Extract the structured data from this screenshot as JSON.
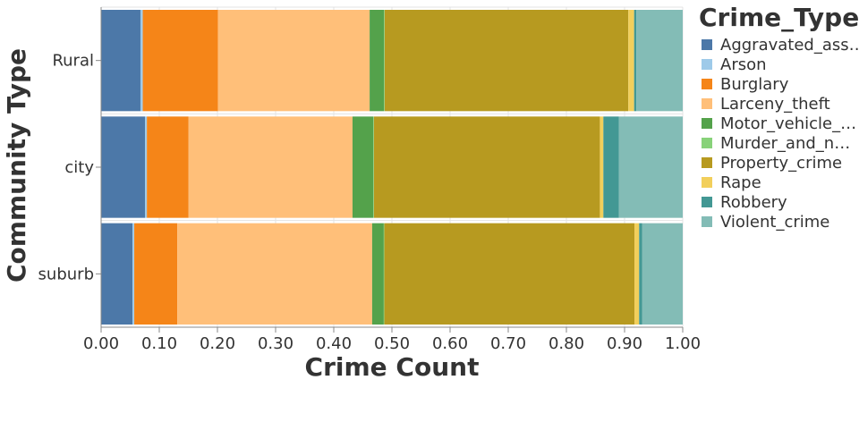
{
  "chart_data": {
    "type": "bar",
    "orientation": "horizontal",
    "stacked": "normalize",
    "xlabel": "Crime Count",
    "ylabel": "Community Type",
    "xlim": [
      0,
      1
    ],
    "x_ticks": [
      "0.00",
      "0.10",
      "0.20",
      "0.30",
      "0.40",
      "0.50",
      "0.60",
      "0.70",
      "0.80",
      "0.90",
      "1.00"
    ],
    "grid": true,
    "categories": [
      "Rural",
      "city",
      "suburb"
    ],
    "legend": {
      "title": "Crime_Type",
      "placement": "right",
      "entries": [
        "Aggravated_ass…",
        "Arson",
        "Burglary",
        "Larceny_theft",
        "Motor_vehicle_…",
        "Murder_and_n…",
        "Property_crime",
        "Rape",
        "Robbery",
        "Violent_crime"
      ]
    },
    "series": [
      {
        "name": "Aggravated_assault",
        "color": "#4c78a8",
        "values": [
          0.068,
          0.076,
          0.054
        ]
      },
      {
        "name": "Arson",
        "color": "#9ecae9",
        "values": [
          0.004,
          0.003,
          0.003
        ]
      },
      {
        "name": "Burglary",
        "color": "#f58518",
        "values": [
          0.13,
          0.072,
          0.074
        ]
      },
      {
        "name": "Larceny_theft",
        "color": "#ffbf79",
        "values": [
          0.262,
          0.283,
          0.335
        ]
      },
      {
        "name": "Motor_vehicle_theft",
        "color": "#54a24b",
        "values": [
          0.025,
          0.036,
          0.02
        ]
      },
      {
        "name": "Murder_and_nonnegligent_manslaughter",
        "color": "#88d27a",
        "values": [
          0.001,
          0.001,
          0.001
        ]
      },
      {
        "name": "Property_crime",
        "color": "#b79a20",
        "values": [
          0.421,
          0.39,
          0.43
        ]
      },
      {
        "name": "Rape",
        "color": "#f2cf5b",
        "values": [
          0.01,
          0.006,
          0.008
        ]
      },
      {
        "name": "Robbery",
        "color": "#439894",
        "values": [
          0.004,
          0.027,
          0.005
        ]
      },
      {
        "name": "Violent_crime",
        "color": "#83bcb6",
        "values": [
          0.08,
          0.11,
          0.07
        ]
      }
    ]
  }
}
